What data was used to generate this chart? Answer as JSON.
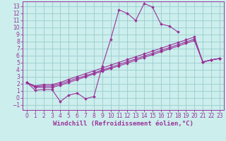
{
  "background_color": "#cceeed",
  "grid_color": "#99cccc",
  "line_color": "#993399",
  "marker": "D",
  "marker_size": 1.8,
  "linewidth": 0.8,
  "xlabel": "Windchill (Refroidissement éolien,°C)",
  "xlabel_fontsize": 6.5,
  "xlim": [
    -0.5,
    23.5
  ],
  "ylim": [
    -1.7,
    13.7
  ],
  "xticks": [
    0,
    1,
    2,
    3,
    4,
    5,
    6,
    7,
    8,
    9,
    10,
    11,
    12,
    13,
    14,
    15,
    16,
    17,
    18,
    19,
    20,
    21,
    22,
    23
  ],
  "yticks": [
    -1,
    0,
    1,
    2,
    3,
    4,
    5,
    6,
    7,
    8,
    9,
    10,
    11,
    12,
    13
  ],
  "tick_fontsize": 5.5,
  "series": [
    [
      2.2,
      1.1,
      1.2,
      1.2,
      -0.5,
      0.4,
      0.7,
      -0.1,
      0.2,
      4.5,
      8.3,
      12.5,
      12.0,
      11.0,
      13.4,
      12.9,
      10.5,
      10.2,
      9.4,
      null,
      null,
      5.1,
      5.4,
      5.6
    ],
    [
      2.2,
      1.5,
      1.5,
      1.5,
      1.8,
      2.2,
      2.6,
      3.0,
      3.4,
      3.8,
      4.2,
      4.55,
      4.95,
      5.35,
      5.75,
      6.15,
      6.55,
      6.95,
      7.35,
      7.75,
      8.15,
      5.1,
      5.4,
      5.6
    ],
    [
      2.2,
      1.6,
      1.7,
      1.7,
      2.0,
      2.4,
      2.8,
      3.15,
      3.55,
      3.95,
      4.35,
      4.75,
      5.15,
      5.55,
      5.95,
      6.35,
      6.75,
      7.15,
      7.55,
      7.95,
      8.35,
      5.1,
      5.4,
      5.6
    ],
    [
      2.2,
      1.7,
      1.9,
      1.9,
      2.2,
      2.65,
      3.05,
      3.45,
      3.85,
      4.25,
      4.65,
      5.05,
      5.45,
      5.85,
      6.25,
      6.65,
      7.05,
      7.45,
      7.85,
      8.25,
      8.65,
      5.1,
      5.4,
      5.6
    ]
  ]
}
